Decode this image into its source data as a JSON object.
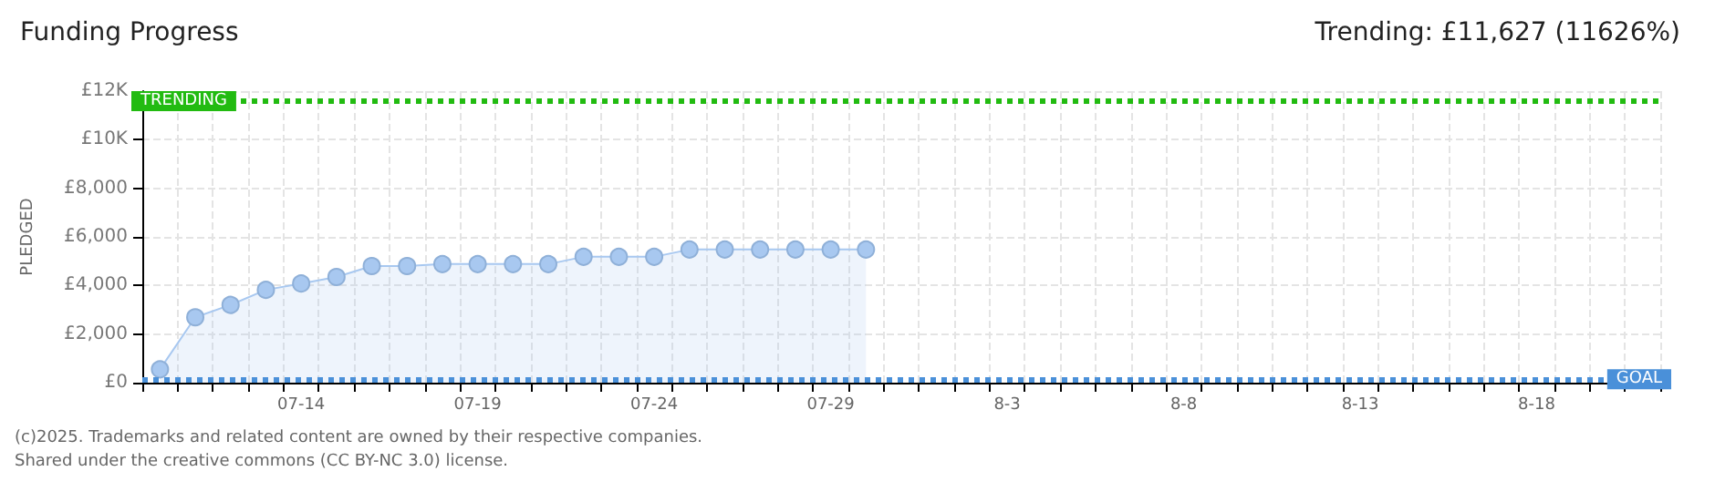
{
  "chart_data": {
    "type": "area",
    "title": "Funding Progress",
    "subtitle": "Trending: £11,627 (11626%)",
    "ylabel": "PLEDGED",
    "annotations": [
      "(c)2025. Trademarks and related content are owned by their respective companies.",
      "Shared under the creative commons (CC BY-NC 3.0) license."
    ],
    "categories": [
      null,
      null,
      null,
      null,
      "07-14",
      null,
      null,
      null,
      null,
      "07-19",
      null,
      null,
      null,
      null,
      "07-24",
      null,
      null,
      null,
      null,
      "07-29",
      null,
      null,
      null,
      null,
      "8-3",
      null,
      null,
      null,
      null,
      "8-8",
      null,
      null,
      null,
      null,
      "8-13",
      null,
      null,
      null,
      null,
      "8-18",
      null,
      null,
      null
    ],
    "series": [
      {
        "color": "#a8c8f0",
        "values": [
          550,
          2690,
          3200,
          3820,
          4080,
          4350,
          4800,
          4800,
          4880,
          4880,
          4880,
          4880,
          5180,
          5180,
          5180,
          5480,
          5480,
          5480,
          5480,
          5480,
          5480,
          null,
          null,
          null,
          null,
          null,
          null,
          null,
          null,
          null,
          null,
          null,
          null,
          null,
          null,
          null,
          null,
          null,
          null,
          null,
          null,
          null,
          null
        ]
      }
    ],
    "ylim": [
      0,
      12000
    ],
    "yticks": [
      {
        "value": 0,
        "label": "£0"
      },
      {
        "value": 2000,
        "label": "£2,000"
      },
      {
        "value": 4000,
        "label": "£4,000"
      },
      {
        "value": 6000,
        "label": "£6,000"
      },
      {
        "value": 8000,
        "label": "£8,000"
      },
      {
        "value": 10000,
        "label": "£10K"
      },
      {
        "value": 12000,
        "label": "£12K"
      }
    ],
    "ref_lines": [
      {
        "axis": "y",
        "value": 11627,
        "label": "TRENDING",
        "color": "#22bb11",
        "line_style": "dotted"
      },
      {
        "axis": "y",
        "value": 100,
        "label": "GOAL",
        "color": "#4a90d9",
        "line_style": "dotted"
      }
    ],
    "grid": true,
    "marker": "circle",
    "line_style": "solid"
  }
}
